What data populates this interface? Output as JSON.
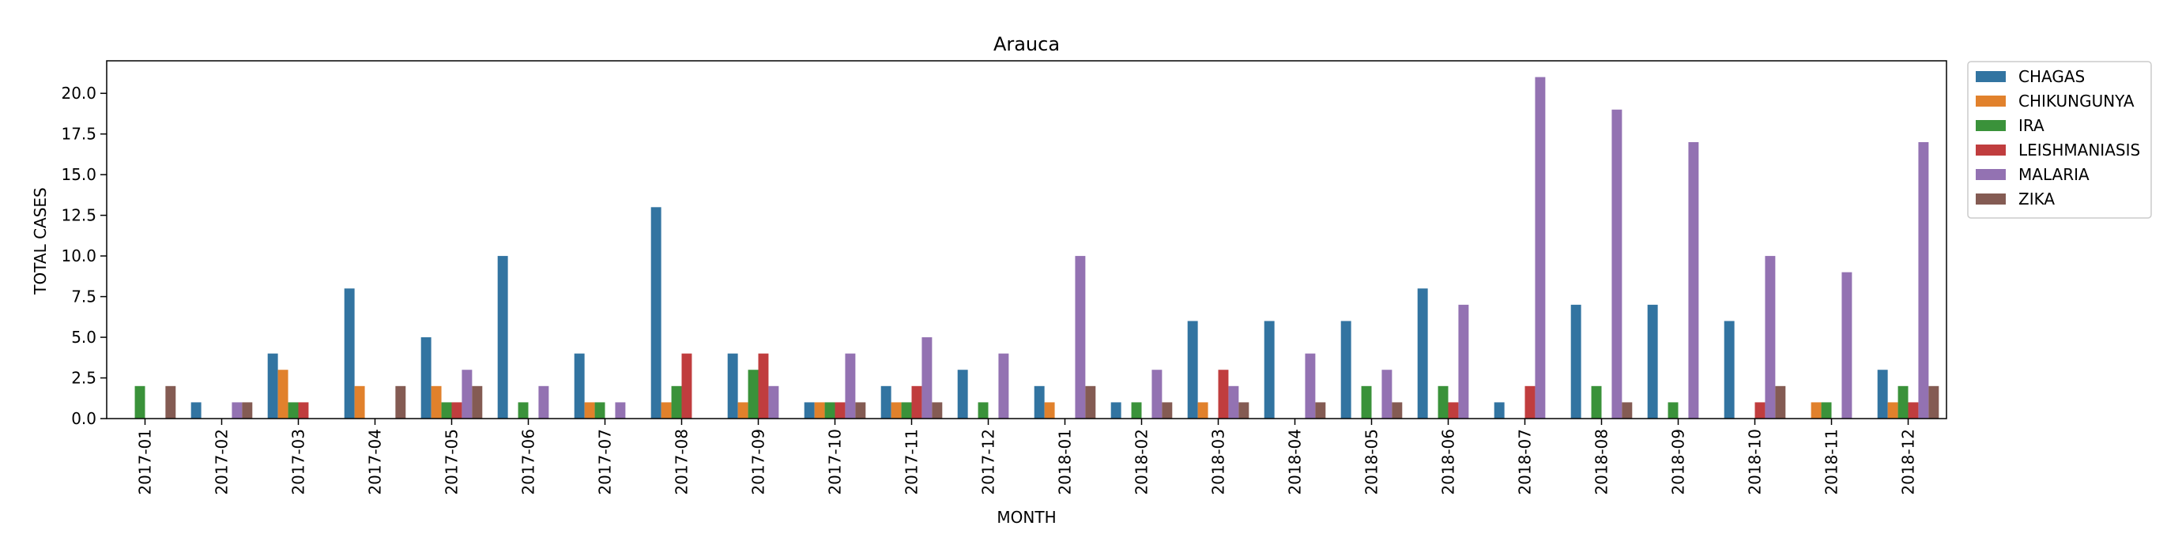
{
  "chart_data": {
    "type": "bar",
    "title": "Arauca",
    "xlabel": "MONTH",
    "ylabel": "TOTAL CASES",
    "ylim": [
      0,
      22
    ],
    "yticks": [
      "0.0",
      "2.5",
      "5.0",
      "7.5",
      "10.0",
      "12.5",
      "15.0",
      "17.5",
      "20.0"
    ],
    "legend_position": "outside-top-right",
    "grid": false,
    "categories": [
      "2017-01",
      "2017-02",
      "2017-03",
      "2017-04",
      "2017-05",
      "2017-06",
      "2017-07",
      "2017-08",
      "2017-09",
      "2017-10",
      "2017-11",
      "2017-12",
      "2018-01",
      "2018-02",
      "2018-03",
      "2018-04",
      "2018-05",
      "2018-06",
      "2018-07",
      "2018-08",
      "2018-09",
      "2018-10",
      "2018-11",
      "2018-12"
    ],
    "series": [
      {
        "name": "CHAGAS",
        "color": "#3274a1",
        "values": [
          0,
          1,
          4,
          8,
          5,
          10,
          4,
          13,
          4,
          1,
          2,
          3,
          2,
          1,
          6,
          6,
          6,
          8,
          1,
          7,
          7,
          6,
          0,
          3
        ]
      },
      {
        "name": "CHIKUNGUNYA",
        "color": "#e1812c",
        "values": [
          0,
          0,
          3,
          2,
          2,
          0,
          1,
          1,
          1,
          1,
          1,
          0,
          1,
          0,
          1,
          0,
          0,
          0,
          0,
          0,
          0,
          0,
          1,
          1
        ]
      },
      {
        "name": "IRA",
        "color": "#3a923a",
        "values": [
          2,
          0,
          1,
          0,
          1,
          1,
          1,
          2,
          3,
          1,
          1,
          1,
          0,
          1,
          0,
          0,
          2,
          2,
          0,
          2,
          1,
          0,
          1,
          2
        ]
      },
      {
        "name": "LEISHMANIASIS",
        "color": "#c03d3e",
        "values": [
          0,
          0,
          1,
          0,
          1,
          0,
          0,
          4,
          4,
          1,
          2,
          0,
          0,
          0,
          3,
          0,
          0,
          1,
          2,
          0,
          0,
          1,
          0,
          1
        ]
      },
      {
        "name": "MALARIA",
        "color": "#9372b2",
        "values": [
          0,
          1,
          0,
          0,
          3,
          2,
          1,
          0,
          2,
          4,
          5,
          4,
          10,
          3,
          2,
          4,
          3,
          7,
          21,
          19,
          17,
          10,
          9,
          17
        ]
      },
      {
        "name": "ZIKA",
        "color": "#845b53",
        "values": [
          2,
          1,
          0,
          2,
          2,
          0,
          0,
          0,
          0,
          1,
          1,
          0,
          2,
          1,
          1,
          1,
          1,
          0,
          0,
          1,
          0,
          2,
          0,
          2
        ]
      }
    ]
  }
}
